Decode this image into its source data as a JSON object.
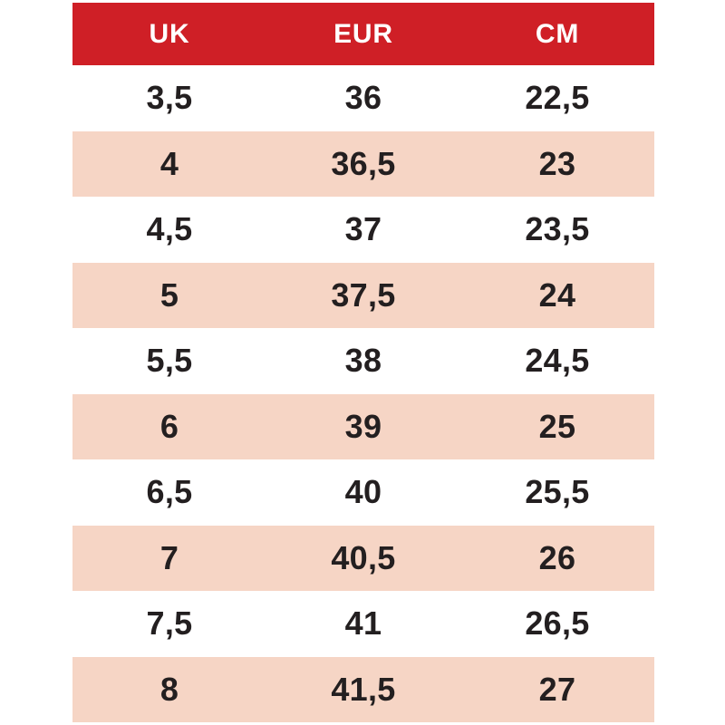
{
  "colors": {
    "header_bg": "#cf1f26",
    "header_text": "#ffffff",
    "row_bg": "#ffffff",
    "row_alt_bg": "#f6d5c5",
    "cell_text": "#231f20"
  },
  "chart_data": {
    "type": "table",
    "columns": [
      "UK",
      "EUR",
      "CM"
    ],
    "rows": [
      [
        "3,5",
        "36",
        "22,5"
      ],
      [
        "4",
        "36,5",
        "23"
      ],
      [
        "4,5",
        "37",
        "23,5"
      ],
      [
        "5",
        "37,5",
        "24"
      ],
      [
        "5,5",
        "38",
        "24,5"
      ],
      [
        "6",
        "39",
        "25"
      ],
      [
        "6,5",
        "40",
        "25,5"
      ],
      [
        "7",
        "40,5",
        "26"
      ],
      [
        "7,5",
        "41",
        "26,5"
      ],
      [
        "8",
        "41,5",
        "27"
      ]
    ],
    "layout": {
      "header_position": "top",
      "alternating_rows": true,
      "grid": false,
      "column_alignment": "center"
    }
  }
}
